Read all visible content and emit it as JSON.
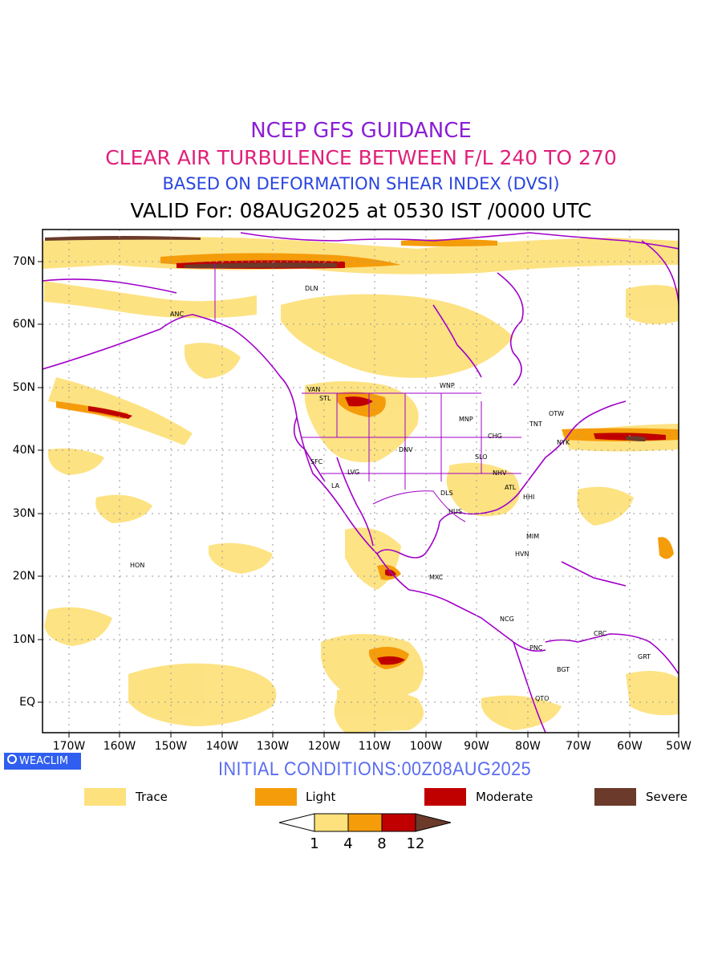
{
  "title": {
    "line1": "NCEP GFS GUIDANCE",
    "line2": "CLEAR AIR TURBULENCE BETWEEN F/L 240 TO 270",
    "line3": "BASED ON DEFORMATION SHEAR INDEX (DVSI)",
    "line4": "VALID For: 08AUG2025 at 0530 IST /0000 UTC"
  },
  "map": {
    "lat_labels": [
      "70N",
      "60N",
      "50N",
      "40N",
      "30N",
      "20N",
      "10N",
      "EQ"
    ],
    "lon_labels": [
      "170W",
      "160W",
      "150W",
      "140W",
      "130W",
      "120W",
      "110W",
      "100W",
      "90W",
      "80W",
      "70W",
      "60W",
      "50W"
    ],
    "stations": [
      {
        "code": "ANC"
      },
      {
        "code": "DLN"
      },
      {
        "code": "VAN"
      },
      {
        "code": "STL"
      },
      {
        "code": "WNP"
      },
      {
        "code": "MNP"
      },
      {
        "code": "OTW"
      },
      {
        "code": "TNT"
      },
      {
        "code": "CHG"
      },
      {
        "code": "NYK"
      },
      {
        "code": "DNV"
      },
      {
        "code": "SFC"
      },
      {
        "code": "SLO"
      },
      {
        "code": "LVG"
      },
      {
        "code": "NHV"
      },
      {
        "code": "LA"
      },
      {
        "code": "ATL"
      },
      {
        "code": "DLS"
      },
      {
        "code": "HHI"
      },
      {
        "code": "HUS"
      },
      {
        "code": "MIM"
      },
      {
        "code": "HON"
      },
      {
        "code": "HVN"
      },
      {
        "code": "MXC"
      },
      {
        "code": "NCG"
      },
      {
        "code": "CRC"
      },
      {
        "code": "PNC"
      },
      {
        "code": "GRT"
      },
      {
        "code": "BGT"
      },
      {
        "code": "QTO"
      }
    ],
    "colors": {
      "trace": "#fde17c",
      "light": "#f59c0a",
      "moderate": "#c00000",
      "severe": "#6b3a2a",
      "coast": "#a000c8",
      "grid": "#9a9a9a"
    }
  },
  "footer": {
    "badge": "WEACLIM",
    "initial": "INITIAL CONDITIONS:00Z08AUG2025"
  },
  "legend": [
    {
      "label": "Trace",
      "color": "#fde17c"
    },
    {
      "label": "Light",
      "color": "#f59c0a"
    },
    {
      "label": "Moderate",
      "color": "#c00000"
    },
    {
      "label": "Severe",
      "color": "#6b3a2a"
    }
  ],
  "colorbar": {
    "ticks": [
      "1",
      "4",
      "8",
      "12"
    ]
  }
}
